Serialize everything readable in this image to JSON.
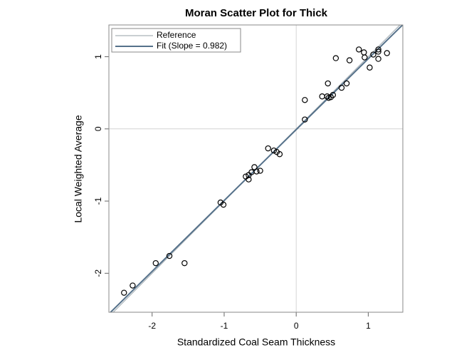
{
  "chart_data": {
    "type": "scatter",
    "title": "Moran Scatter Plot for Thick",
    "x_label": "Standardized Coal Seam Thickness",
    "y_label": "Local Weighted Average",
    "xlim": [
      -2.6,
      1.48
    ],
    "ylim": [
      -2.54,
      1.44
    ],
    "xticks": [
      -2,
      -1,
      0,
      1
    ],
    "yticks": [
      -2,
      -1,
      0,
      1
    ],
    "reference_x": 0,
    "reference_y": 0,
    "legend": "top-left",
    "series": [
      {
        "color": "#000000",
        "x": [
          -2.39,
          -2.27,
          -1.95,
          -1.76,
          -1.55,
          -1.05,
          -1.01,
          -0.7,
          -0.66,
          -0.66,
          -0.62,
          -0.58,
          -0.55,
          -0.5,
          -0.39,
          -0.31,
          -0.27,
          -0.23,
          0.12,
          0.12,
          0.36,
          0.44,
          0.43,
          0.45,
          0.48,
          0.51,
          0.55,
          0.63,
          0.7,
          0.74,
          0.87,
          0.94,
          0.95,
          1.02,
          1.07,
          1.14,
          1.14,
          1.14,
          1.26
        ],
        "values": [
          -2.27,
          -2.17,
          -1.86,
          -1.76,
          -1.86,
          -1.02,
          -1.05,
          -0.66,
          -0.7,
          -0.64,
          -0.6,
          -0.53,
          -0.59,
          -0.58,
          -0.27,
          -0.3,
          -0.32,
          -0.35,
          0.4,
          0.13,
          0.45,
          0.63,
          0.45,
          0.43,
          0.44,
          0.47,
          0.98,
          0.57,
          0.63,
          0.95,
          1.1,
          1.06,
          0.99,
          0.85,
          1.03,
          0.97,
          1.1,
          1.07,
          1.05
        ]
      }
    ],
    "lines": [
      {
        "name": "Reference",
        "color": "#a9b2b8",
        "slope": 1,
        "intercept": 0
      },
      {
        "name": "Fit (Slope = 0.982)",
        "color": "#55718a",
        "slope": 0.982,
        "intercept": -0.01
      }
    ]
  }
}
